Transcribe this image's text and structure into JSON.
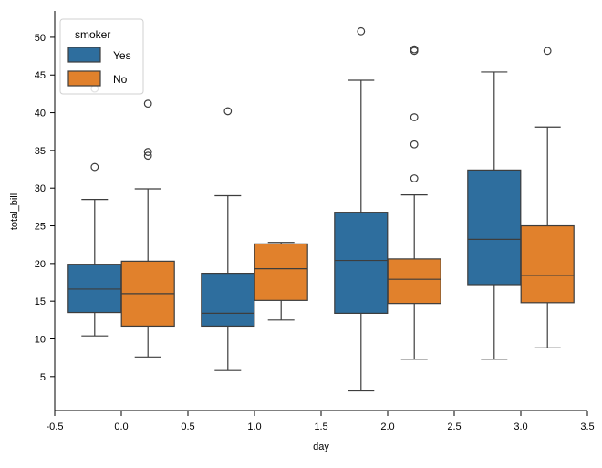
{
  "chart_data": {
    "type": "box",
    "xlabel": "day",
    "ylabel": "total_bill",
    "xlim": [
      -0.5,
      3.5
    ],
    "ylim": [
      0.5,
      53.5
    ],
    "xticks": [
      -0.5,
      0.0,
      0.5,
      1.0,
      1.5,
      2.0,
      2.5,
      3.0,
      3.5
    ],
    "xtick_labels": [
      "-0.5",
      "0.0",
      "0.5",
      "1.0",
      "1.5",
      "2.0",
      "2.5",
      "3.0",
      "3.5"
    ],
    "yticks": [
      5,
      10,
      15,
      20,
      25,
      30,
      35,
      40,
      45,
      50
    ],
    "ytick_labels": [
      "5",
      "10",
      "15",
      "20",
      "25",
      "30",
      "35",
      "40",
      "45",
      "50"
    ],
    "grid": false,
    "legend": {
      "title": "smoker",
      "placement": "top-left"
    },
    "series": [
      {
        "name": "Yes",
        "color": "#2e6e9e",
        "boxes": [
          {
            "x": -0.2,
            "min": 10.4,
            "q1": 13.5,
            "median": 16.6,
            "q3": 19.9,
            "max": 28.5,
            "outliers": [
              32.8,
              43.2
            ]
          },
          {
            "x": 0.8,
            "min": 5.8,
            "q1": 11.7,
            "median": 13.4,
            "q3": 18.7,
            "max": 29.0,
            "outliers": [
              40.2
            ]
          },
          {
            "x": 1.8,
            "min": 3.1,
            "q1": 13.4,
            "median": 20.4,
            "q3": 26.8,
            "max": 44.3,
            "outliers": [
              50.8
            ]
          },
          {
            "x": 2.8,
            "min": 7.3,
            "q1": 17.2,
            "median": 23.2,
            "q3": 32.4,
            "max": 45.4,
            "outliers": []
          }
        ]
      },
      {
        "name": "No",
        "color": "#e1812c",
        "boxes": [
          {
            "x": 0.2,
            "min": 7.6,
            "q1": 11.7,
            "median": 16.0,
            "q3": 20.3,
            "max": 29.9,
            "outliers": [
              34.3,
              34.8,
              41.2
            ]
          },
          {
            "x": 1.2,
            "min": 12.5,
            "q1": 15.1,
            "median": 19.3,
            "q3": 22.6,
            "max": 22.8,
            "outliers": []
          },
          {
            "x": 2.2,
            "min": 7.3,
            "q1": 14.7,
            "median": 17.9,
            "q3": 20.6,
            "max": 29.1,
            "outliers": [
              31.3,
              35.8,
              39.4,
              48.2,
              48.4
            ]
          },
          {
            "x": 3.2,
            "min": 8.8,
            "q1": 14.8,
            "median": 18.4,
            "q3": 25.0,
            "max": 38.1,
            "outliers": [
              48.2
            ]
          }
        ]
      }
    ]
  }
}
